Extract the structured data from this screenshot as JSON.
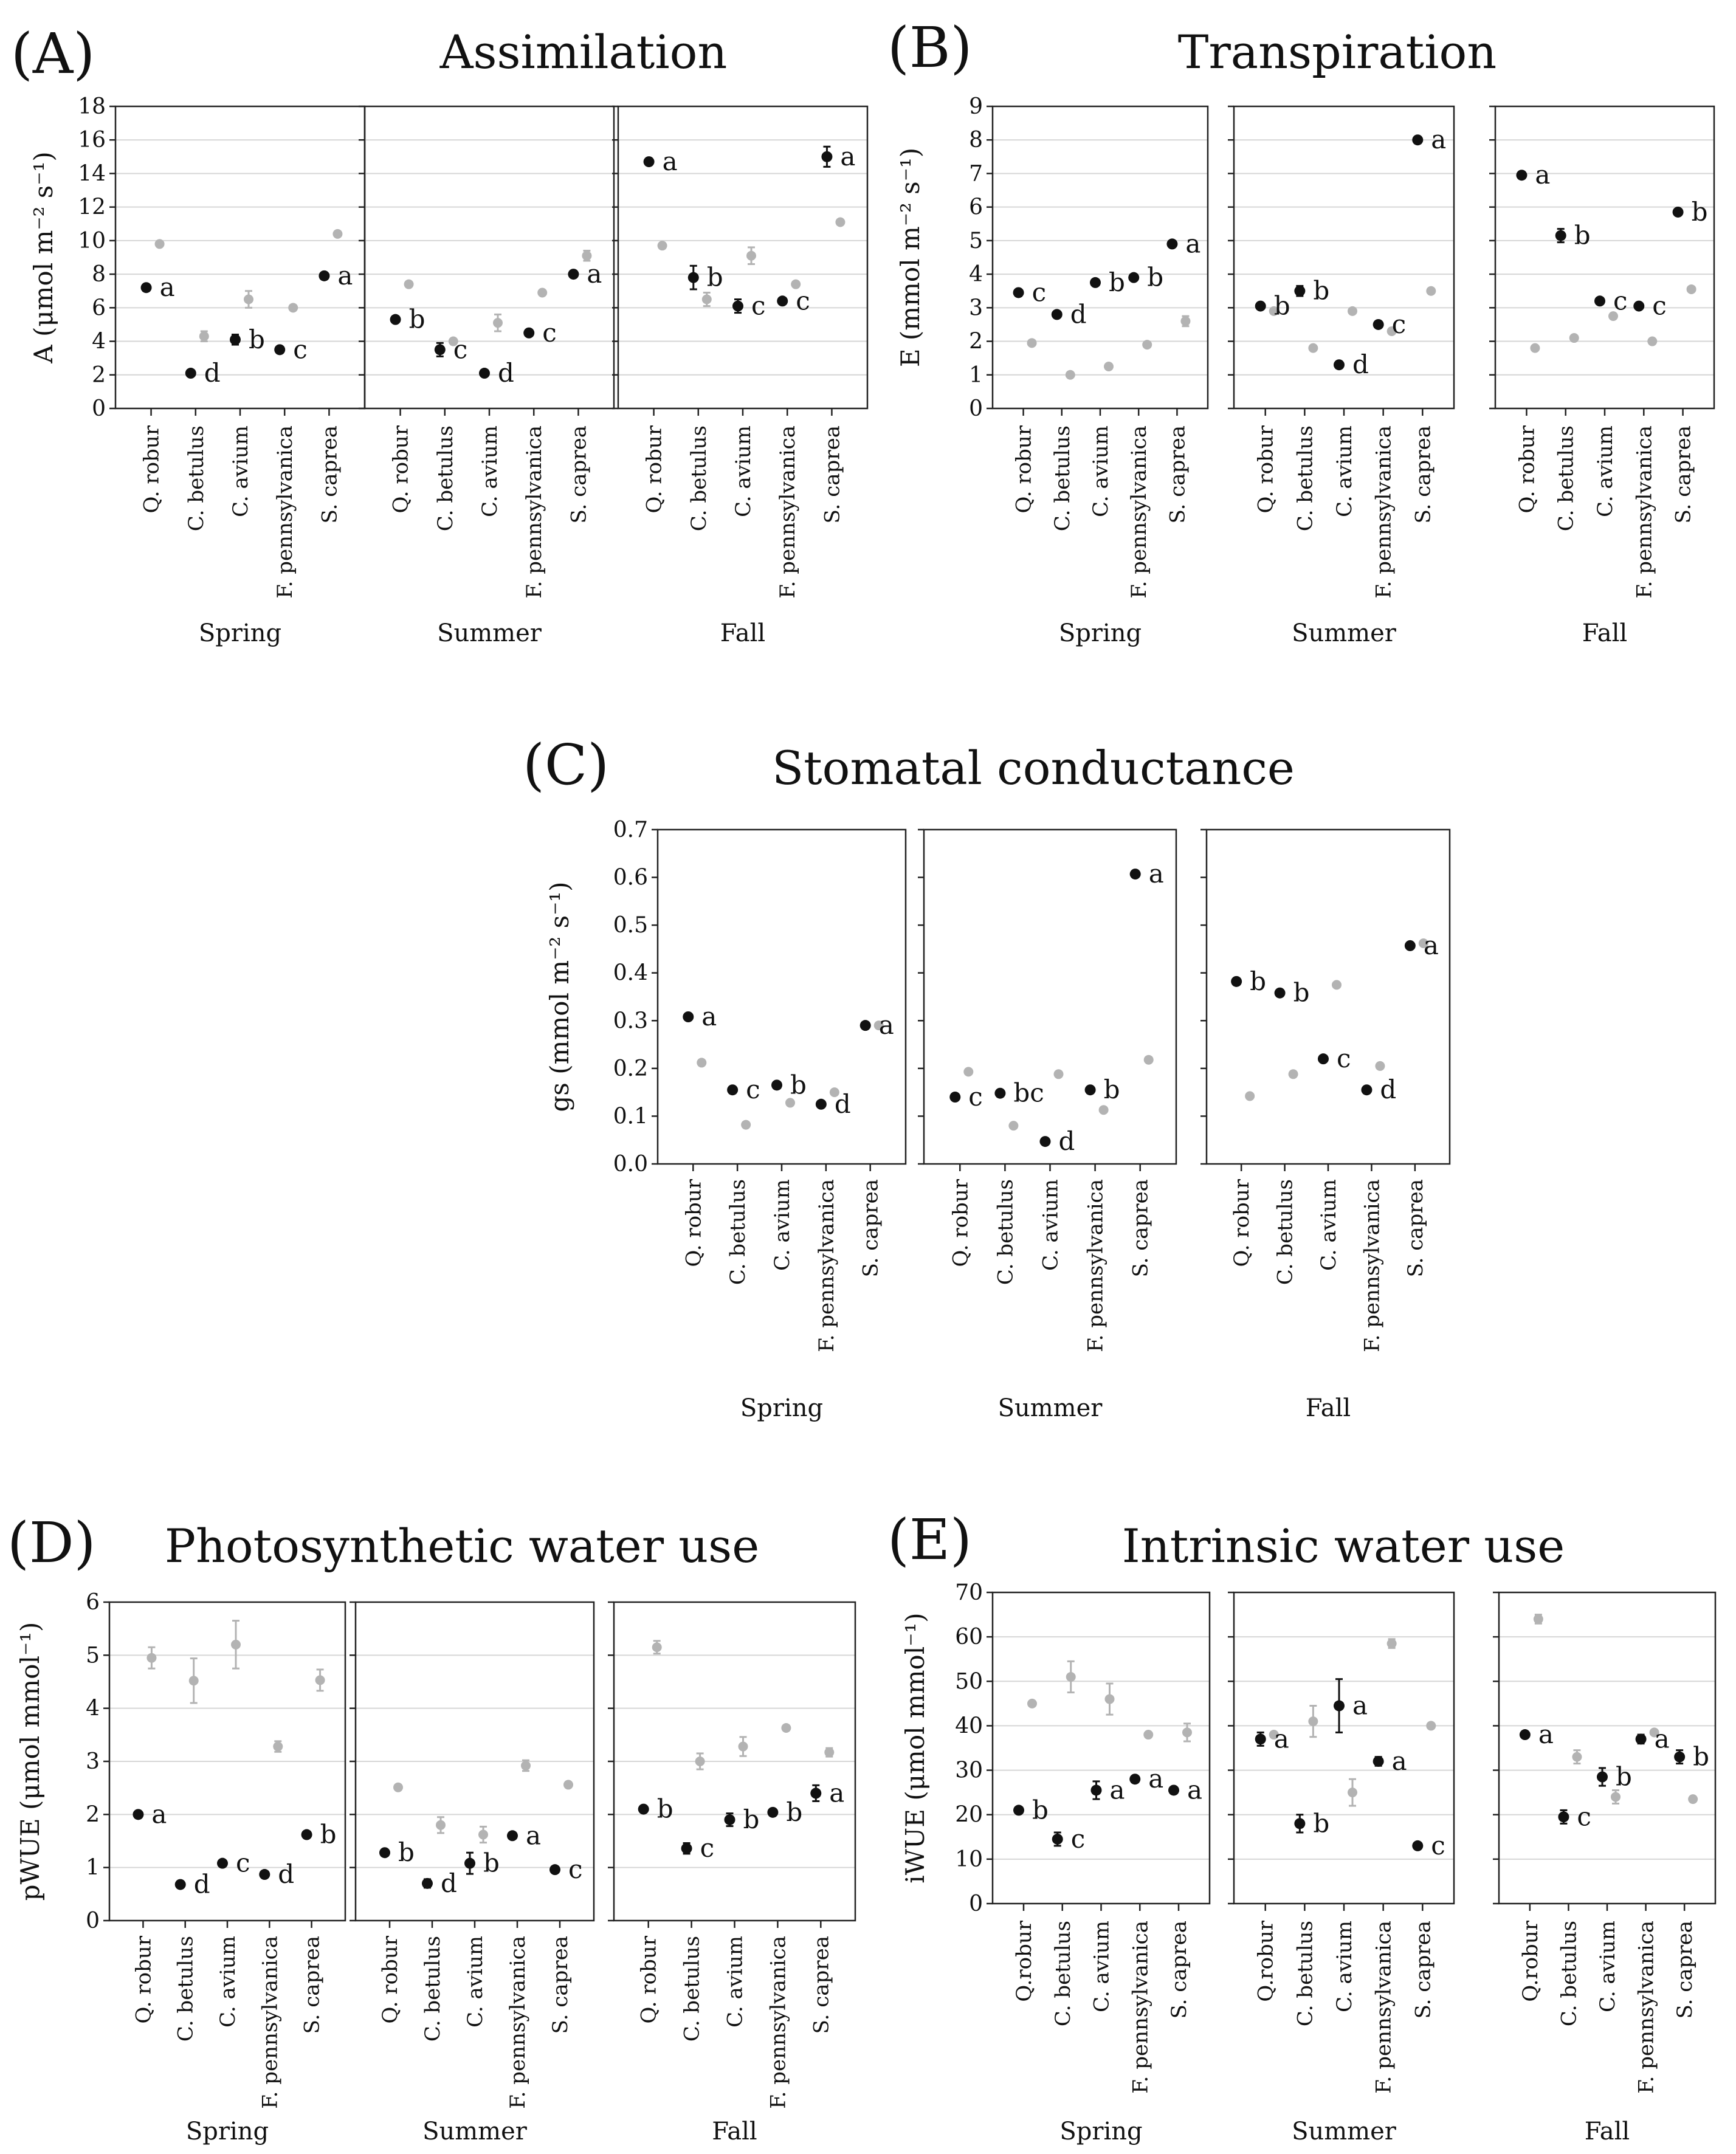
{
  "figure": {
    "species": [
      "Q. robur",
      "C. betulus",
      "C. avium",
      "F. pennsylvanica",
      "S. caprea"
    ]
  },
  "chart_data": [
    {
      "type": "scatter",
      "panel_label": "(A)",
      "title": "Assimilation",
      "ylabel": "A (μmol m⁻² s⁻¹)",
      "ylim": [
        0,
        18
      ],
      "ystep": 2,
      "yticks": [
        "0",
        "2",
        "4",
        "6",
        "8",
        "10",
        "12",
        "14",
        "16",
        "18"
      ],
      "grid": true,
      "marker_colors": {
        "highlight": "#111111",
        "comparison": "#b3b3b3"
      },
      "facets": [
        {
          "season": "Spring",
          "categories": [
            "Q. robur",
            "C. betulus",
            "C. avium",
            "F. pennsylvanica",
            "S. caprea"
          ],
          "highlight": [
            7.2,
            2.1,
            4.1,
            3.5,
            7.9
          ],
          "highlight_err": [
            0,
            0,
            0.3,
            0,
            0
          ],
          "comparison": [
            9.8,
            4.3,
            6.5,
            6.0,
            10.4
          ],
          "comparison_err": [
            0,
            0.3,
            0.5,
            0,
            0
          ],
          "letters": [
            "a",
            "d",
            "b",
            "c",
            "a"
          ]
        },
        {
          "season": "Summer",
          "categories": [
            "Q. robur",
            "C. betulus",
            "C. avium",
            "F. pennsylvanica",
            "S. caprea"
          ],
          "highlight": [
            5.3,
            3.5,
            2.1,
            4.5,
            8.0
          ],
          "highlight_err": [
            0,
            0.4,
            0,
            0,
            0
          ],
          "comparison": [
            7.4,
            4.0,
            5.1,
            6.9,
            9.1
          ],
          "comparison_err": [
            0,
            0,
            0.5,
            0,
            0.3
          ],
          "letters": [
            "b",
            "c",
            "d",
            "c",
            "a"
          ]
        },
        {
          "season": "Fall",
          "categories": [
            "Q. robur",
            "C. betulus",
            "C. avium",
            "F. pennsylvanica",
            "S. caprea"
          ],
          "highlight": [
            14.7,
            7.8,
            6.1,
            6.4,
            15.0
          ],
          "highlight_err": [
            0,
            0.7,
            0.4,
            0,
            0.6
          ],
          "comparison": [
            9.7,
            6.5,
            9.1,
            7.4,
            11.1
          ],
          "comparison_err": [
            0,
            0.4,
            0.5,
            0,
            0
          ],
          "letters": [
            "a",
            "b",
            "c",
            "c",
            "a"
          ]
        }
      ]
    },
    {
      "type": "scatter",
      "panel_label": "(B)",
      "title": "Transpiration",
      "ylabel": "E (mmol m⁻² s⁻¹)",
      "ylim": [
        0,
        9
      ],
      "ystep": 1,
      "yticks": [
        "0",
        "1",
        "2",
        "3",
        "4",
        "5",
        "6",
        "7",
        "8",
        "9"
      ],
      "grid": true,
      "marker_colors": {
        "highlight": "#111111",
        "comparison": "#b3b3b3"
      },
      "facets": [
        {
          "season": "Spring",
          "categories": [
            "Q. robur",
            "C. betulus",
            "C. avium",
            "F. pennsylvanica",
            "S. caprea"
          ],
          "highlight": [
            3.45,
            2.8,
            3.75,
            3.9,
            4.9
          ],
          "highlight_err": [
            0,
            0,
            0,
            0,
            0
          ],
          "comparison": [
            1.95,
            1.0,
            1.25,
            1.9,
            2.6
          ],
          "comparison_err": [
            0,
            0,
            0,
            0,
            0.15
          ],
          "letters": [
            "c",
            "d",
            "b",
            "b",
            "a"
          ]
        },
        {
          "season": "Summer",
          "categories": [
            "Q. robur",
            "C. betulus",
            "C. avium",
            "F. pennsylvanica",
            "S. caprea"
          ],
          "highlight": [
            3.05,
            3.5,
            1.3,
            2.5,
            8.0
          ],
          "highlight_err": [
            0,
            0.15,
            0,
            0,
            0
          ],
          "comparison": [
            2.9,
            1.8,
            2.9,
            2.3,
            3.5
          ],
          "comparison_err": [
            0,
            0,
            0,
            0,
            0
          ],
          "letters": [
            "b",
            "b",
            "d",
            "c",
            "a"
          ]
        },
        {
          "season": "Fall",
          "categories": [
            "Q. robur",
            "C. betulus",
            "C. avium",
            "F. pennsylvanica",
            "S. caprea"
          ],
          "highlight": [
            6.95,
            5.15,
            3.2,
            3.05,
            5.85
          ],
          "highlight_err": [
            0,
            0.2,
            0,
            0,
            0
          ],
          "comparison": [
            1.8,
            2.1,
            2.75,
            2.0,
            3.55
          ],
          "comparison_err": [
            0,
            0,
            0,
            0,
            0
          ],
          "letters": [
            "a",
            "b",
            "c",
            "c",
            "b"
          ]
        }
      ]
    },
    {
      "type": "scatter",
      "panel_label": "(C)",
      "title": "Stomatal conductance",
      "ylabel": "gs (mmol m⁻² s⁻¹)",
      "ylim": [
        0,
        0.7
      ],
      "ystep": 0.1,
      "yticks": [
        "0.0",
        "0.1",
        "0.2",
        "0.3",
        "0.4",
        "0.5",
        "0.6",
        "0.7"
      ],
      "grid": false,
      "marker_colors": {
        "highlight": "#111111",
        "comparison": "#b3b3b3"
      },
      "facets": [
        {
          "season": "Spring",
          "categories": [
            "Q. robur",
            "C. betulus",
            "C. avium",
            "F. pennsylvanica",
            "S. caprea"
          ],
          "highlight": [
            0.308,
            0.155,
            0.165,
            0.125,
            0.29
          ],
          "highlight_err": [
            0,
            0,
            0,
            0,
            0
          ],
          "comparison": [
            0.212,
            0.082,
            0.128,
            0.15,
            0.29
          ],
          "comparison_err": [
            0,
            0,
            0,
            0,
            0
          ],
          "letters": [
            "a",
            "c",
            "b",
            "d",
            "a"
          ]
        },
        {
          "season": "Summer",
          "categories": [
            "Q. robur",
            "C. betulus",
            "C. avium",
            "F. pennsylvanica",
            "S. caprea"
          ],
          "highlight": [
            0.14,
            0.148,
            0.047,
            0.155,
            0.607
          ],
          "highlight_err": [
            0,
            0,
            0,
            0,
            0
          ],
          "comparison": [
            0.193,
            0.08,
            0.188,
            0.113,
            0.218
          ],
          "comparison_err": [
            0,
            0,
            0,
            0,
            0
          ],
          "letters": [
            "c",
            "bc",
            "d",
            "b",
            "a"
          ]
        },
        {
          "season": "Fall",
          "categories": [
            "Q. robur",
            "C. betulus",
            "C. avium",
            "F. pennsylvanica",
            "S. caprea"
          ],
          "highlight": [
            0.382,
            0.358,
            0.22,
            0.155,
            0.457
          ],
          "highlight_err": [
            0,
            0,
            0,
            0,
            0
          ],
          "comparison": [
            0.142,
            0.188,
            0.375,
            0.205,
            0.462
          ],
          "comparison_err": [
            0,
            0,
            0,
            0,
            0
          ],
          "letters": [
            "b",
            "b",
            "c",
            "d",
            "a"
          ]
        }
      ]
    },
    {
      "type": "scatter",
      "panel_label": "(D)",
      "title": "Photosynthetic water use",
      "ylabel": "pWUE (μmol mmol⁻¹)",
      "ylim": [
        0,
        6
      ],
      "ystep": 1,
      "yticks": [
        "0",
        "1",
        "2",
        "3",
        "4",
        "5",
        "6"
      ],
      "grid": true,
      "marker_colors": {
        "highlight": "#111111",
        "comparison": "#b3b3b3"
      },
      "facets": [
        {
          "season": "Spring",
          "categories": [
            "Q. robur",
            "C. betulus",
            "C. avium",
            "F. pennsylvanica",
            "S. caprea"
          ],
          "highlight": [
            2.0,
            0.68,
            1.08,
            0.87,
            1.62
          ],
          "highlight_err": [
            0,
            0,
            0,
            0,
            0
          ],
          "comparison": [
            4.95,
            4.52,
            5.2,
            3.28,
            4.53
          ],
          "comparison_err": [
            0.2,
            0.42,
            0.45,
            0.1,
            0.2
          ],
          "letters": [
            "a",
            "d",
            "c",
            "d",
            "b"
          ]
        },
        {
          "season": "Summer",
          "categories": [
            "Q. robur",
            "C. betulus",
            "C. avium",
            "F. pennsylvanica",
            "S. caprea"
          ],
          "highlight": [
            1.28,
            0.7,
            1.08,
            1.6,
            0.96
          ],
          "highlight_err": [
            0,
            0.08,
            0.2,
            0,
            0
          ],
          "comparison": [
            2.51,
            1.8,
            1.62,
            2.92,
            2.56
          ],
          "comparison_err": [
            0,
            0.15,
            0.15,
            0.1,
            0
          ],
          "letters": [
            "b",
            "d",
            "b",
            "a",
            "c"
          ]
        },
        {
          "season": "Fall",
          "categories": [
            "Q. robur",
            "C. betulus",
            "C. avium",
            "F. pennsylvanica",
            "S. caprea"
          ],
          "highlight": [
            2.1,
            1.36,
            1.9,
            2.04,
            2.4
          ],
          "highlight_err": [
            0,
            0.1,
            0.12,
            0,
            0.15
          ],
          "comparison": [
            5.15,
            3.0,
            3.28,
            3.63,
            3.17
          ],
          "comparison_err": [
            0.12,
            0.15,
            0.18,
            0,
            0.08
          ],
          "letters": [
            "b",
            "c",
            "b",
            "b",
            "a"
          ]
        }
      ]
    },
    {
      "type": "scatter",
      "panel_label": "(E)",
      "title": "Intrinsic water use",
      "ylabel": "iWUE (μmol mmol⁻¹)",
      "ylim": [
        0,
        70
      ],
      "ystep": 10,
      "yticks": [
        "0",
        "10",
        "20",
        "30",
        "40",
        "50",
        "60",
        "70"
      ],
      "grid": true,
      "marker_colors": {
        "highlight": "#111111",
        "comparison": "#b3b3b3"
      },
      "facets": [
        {
          "season": "Spring",
          "categories": [
            "Q.robur",
            "C. betulus",
            "C. avium",
            "F. pennsylvanica",
            "S. caprea"
          ],
          "highlight": [
            21.0,
            14.5,
            25.5,
            28.0,
            25.5
          ],
          "highlight_err": [
            0,
            1.5,
            2,
            0,
            0
          ],
          "comparison": [
            45.0,
            51.0,
            46.0,
            38.0,
            38.5
          ],
          "comparison_err": [
            0,
            3.5,
            3.5,
            0,
            2
          ],
          "letters": [
            "b",
            "c",
            "a",
            "a",
            "a"
          ]
        },
        {
          "season": "Summer",
          "categories": [
            "Q.robur",
            "C. betulus",
            "C. avium",
            "F. pennsylvanica",
            "S. caprea"
          ],
          "highlight": [
            37.0,
            18.0,
            44.5,
            32.0,
            13.0
          ],
          "highlight_err": [
            1.5,
            2,
            6,
            1,
            0
          ],
          "comparison": [
            38.0,
            41.0,
            25.0,
            58.5,
            40.0
          ],
          "comparison_err": [
            0,
            3.5,
            3,
            1,
            0
          ],
          "letters": [
            "a",
            "b",
            "a",
            "a",
            "c"
          ]
        },
        {
          "season": "Fall",
          "categories": [
            "Q.robur",
            "C. betulus",
            "C. avium",
            "F. pennsylvanica",
            "S. caprea"
          ],
          "highlight": [
            38.0,
            19.5,
            28.5,
            37.0,
            33.0
          ],
          "highlight_err": [
            0,
            1.5,
            2,
            1,
            1.5
          ],
          "comparison": [
            64.0,
            33.0,
            24.0,
            38.5,
            23.5
          ],
          "comparison_err": [
            1,
            1.5,
            1.5,
            0,
            0
          ],
          "letters": [
            "a",
            "c",
            "b",
            "a",
            "b"
          ]
        }
      ]
    }
  ]
}
